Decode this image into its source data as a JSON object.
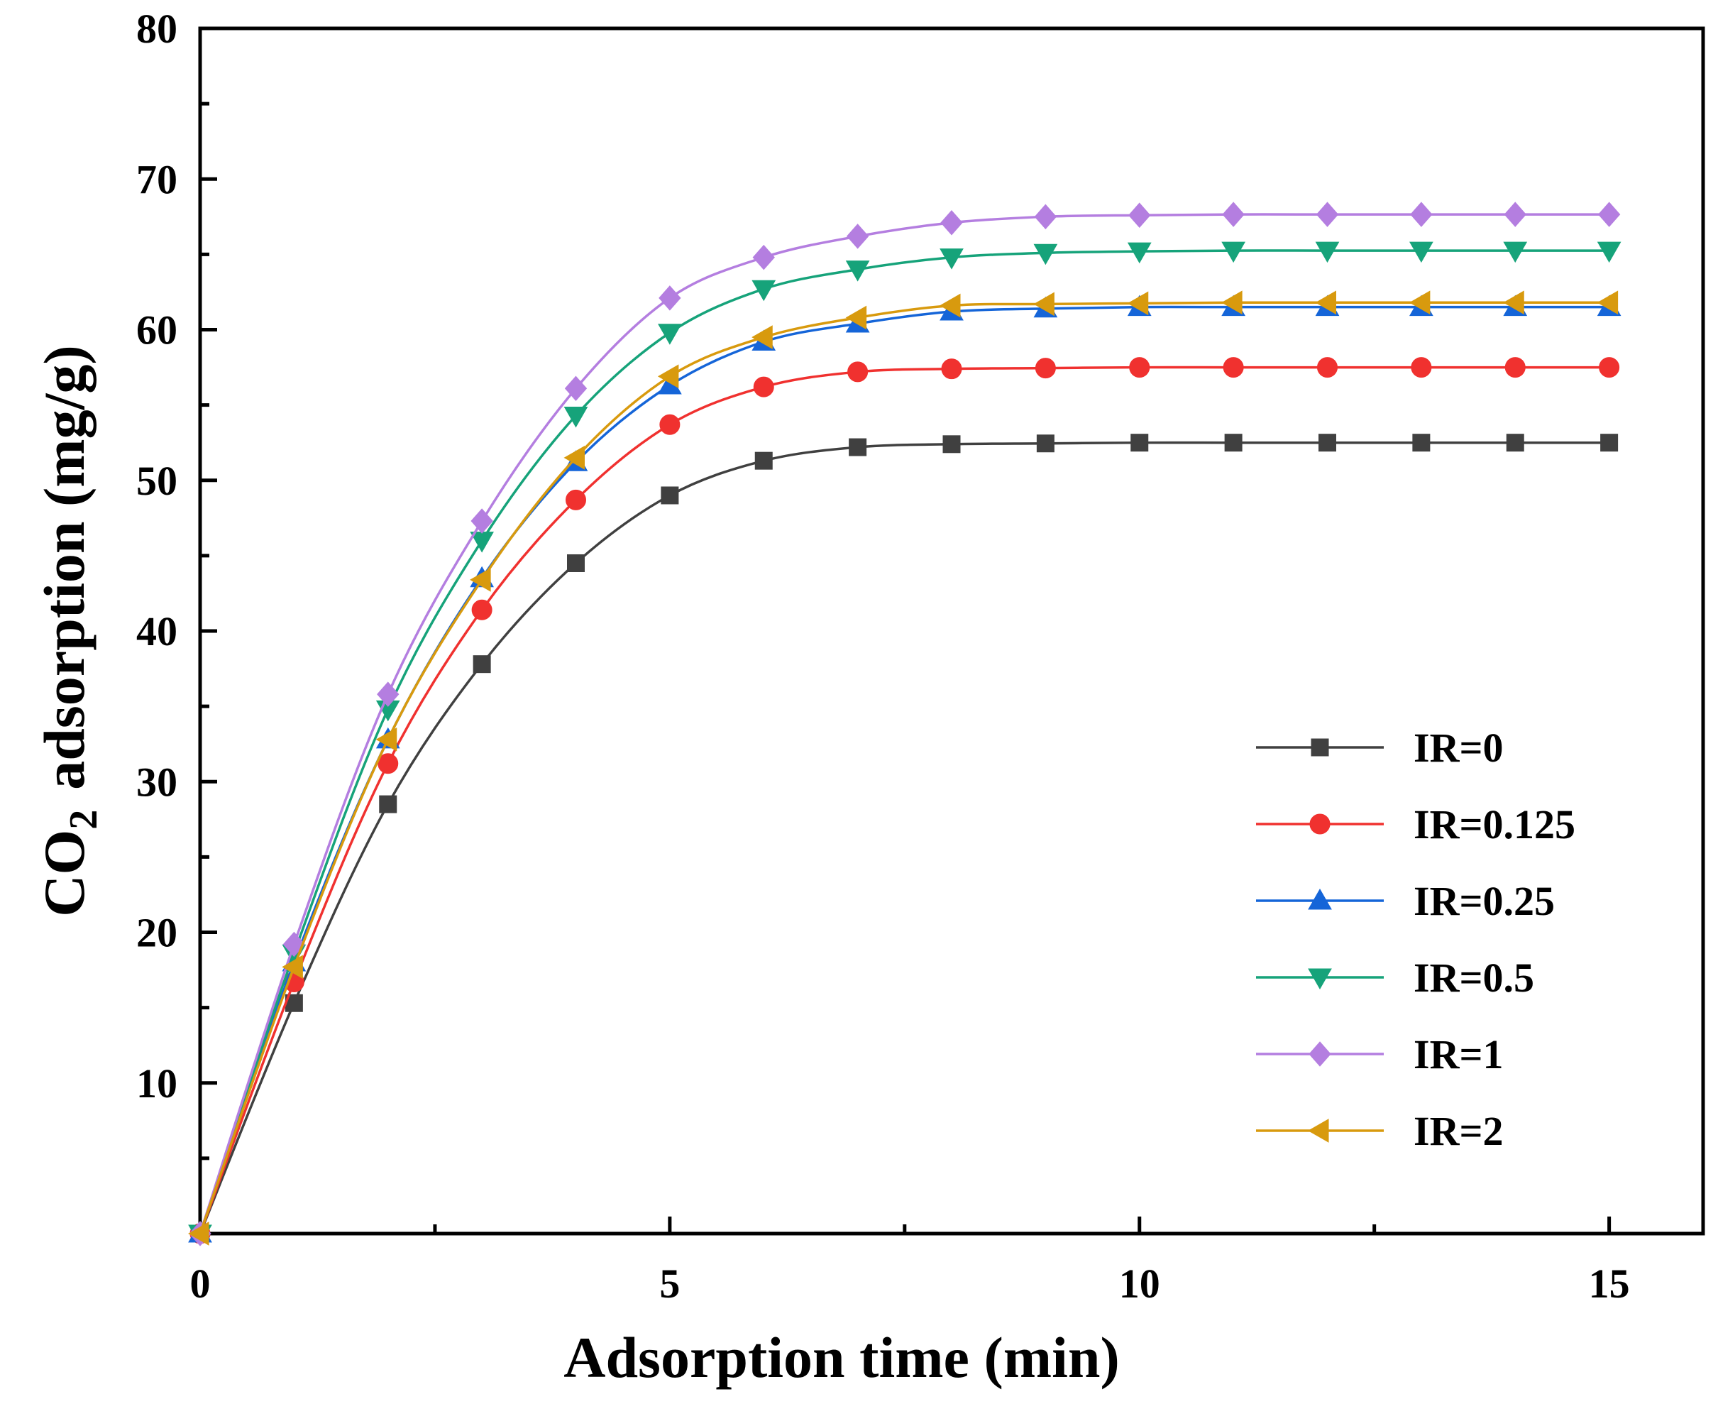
{
  "chart_data": {
    "type": "line",
    "title": "",
    "xlabel": "Adsorption time (min)",
    "ylabel_main": "CO",
    "ylabel_sub": "2",
    "ylabel_rest": "adsorption (mg/g)",
    "xlim": [
      0,
      16
    ],
    "ylim": [
      0,
      80
    ],
    "x_ticks": [
      0,
      5,
      10,
      15
    ],
    "x_tick_labels": [
      "0",
      "5",
      "10",
      "15"
    ],
    "y_ticks": [
      10,
      20,
      30,
      40,
      50,
      60,
      70,
      80
    ],
    "y_tick_labels": [
      "10",
      "20",
      "30",
      "40",
      "50",
      "60",
      "70",
      "80"
    ],
    "legend_position": "bottom-right",
    "x": [
      0,
      1,
      2,
      3,
      4,
      5,
      6,
      7,
      8,
      9,
      10,
      11,
      12,
      13,
      14,
      15
    ],
    "series": [
      {
        "name": "IR=0",
        "color": "#404040",
        "marker": "square",
        "values": [
          0,
          15.3,
          28.5,
          37.8,
          44.5,
          49.0,
          51.3,
          52.2,
          52.4,
          52.45,
          52.5,
          52.5,
          52.5,
          52.5,
          52.5,
          52.5
        ]
      },
      {
        "name": "IR=0.125",
        "color": "#f0312f",
        "marker": "circle",
        "values": [
          0,
          16.7,
          31.2,
          41.4,
          48.7,
          53.7,
          56.2,
          57.2,
          57.4,
          57.45,
          57.5,
          57.5,
          57.5,
          57.5,
          57.5,
          57.5
        ]
      },
      {
        "name": "IR=0.25",
        "color": "#1565d8",
        "marker": "triangle-up",
        "values": [
          0,
          18.0,
          32.8,
          43.5,
          51.2,
          56.3,
          59.2,
          60.4,
          61.2,
          61.4,
          61.5,
          61.5,
          61.5,
          61.5,
          61.5,
          61.5
        ]
      },
      {
        "name": "IR=0.5",
        "color": "#16a37a",
        "marker": "triangle-down",
        "values": [
          0,
          18.6,
          34.8,
          46.0,
          54.3,
          59.8,
          62.7,
          64.0,
          64.8,
          65.1,
          65.2,
          65.25,
          65.25,
          65.25,
          65.25,
          65.25
        ]
      },
      {
        "name": "IR=1",
        "color": "#b47ee0",
        "marker": "diamond",
        "values": [
          0,
          19.2,
          35.8,
          47.3,
          56.1,
          62.1,
          64.8,
          66.2,
          67.1,
          67.5,
          67.6,
          67.65,
          67.65,
          67.65,
          67.65,
          67.65
        ]
      },
      {
        "name": "IR=2",
        "color": "#d89a0e",
        "marker": "triangle-left",
        "values": [
          0,
          17.7,
          32.8,
          43.4,
          51.5,
          56.9,
          59.5,
          60.8,
          61.6,
          61.7,
          61.75,
          61.8,
          61.8,
          61.8,
          61.8,
          61.8
        ]
      }
    ]
  }
}
